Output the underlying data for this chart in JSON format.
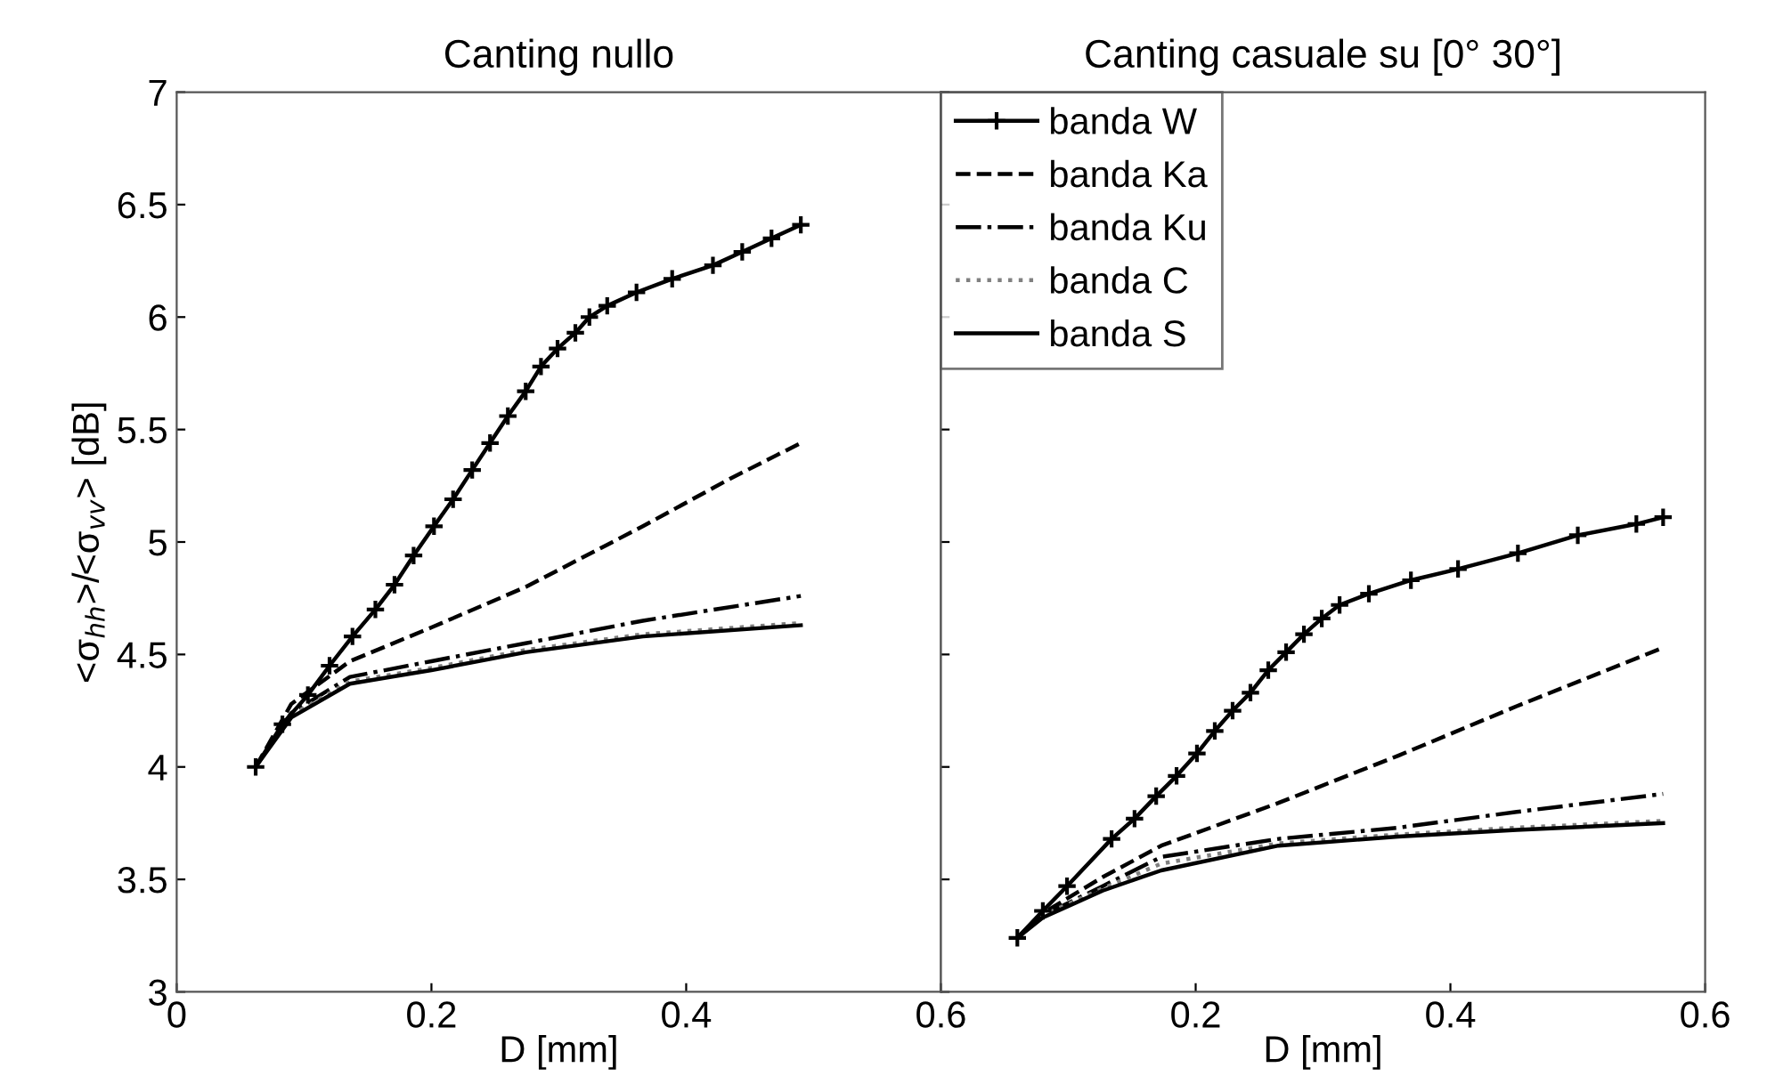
{
  "chart_data": [
    {
      "type": "line",
      "title": "Canting nullo",
      "xlabel": "D [mm]",
      "ylabel": "<σ$_{hh}$>/<σ$_{vv}$> [dB]",
      "xlim": [
        0,
        0.6
      ],
      "xticks": [
        0,
        0.2,
        0.4,
        0.6
      ],
      "ylim": [
        3,
        7
      ],
      "yticks": [
        3,
        3.5,
        4,
        4.5,
        5,
        5.5,
        6,
        6.5,
        7
      ],
      "grid": false,
      "legend": false,
      "series": [
        {
          "color": "#000000",
          "marker": "cross",
          "line_style": "solid",
          "x": [
            0.062,
            0.083,
            0.103,
            0.12,
            0.138,
            0.156,
            0.171,
            0.186,
            0.202,
            0.217,
            0.232,
            0.246,
            0.26,
            0.274,
            0.286,
            0.299,
            0.313,
            0.324,
            0.338,
            0.361,
            0.389,
            0.421,
            0.444,
            0.467,
            0.49
          ],
          "values": [
            4.0,
            4.19,
            4.32,
            4.45,
            4.58,
            4.7,
            4.81,
            4.94,
            5.07,
            5.19,
            5.32,
            5.44,
            5.56,
            5.67,
            5.78,
            5.86,
            5.93,
            6.0,
            6.05,
            6.11,
            6.17,
            6.23,
            6.29,
            6.35,
            6.41
          ]
        },
        {
          "color": "#000000",
          "marker": "none",
          "line_style": "dashed",
          "x": [
            0.062,
            0.09,
            0.136,
            0.2,
            0.274,
            0.366,
            0.434,
            0.49
          ],
          "values": [
            4.0,
            4.28,
            4.47,
            4.62,
            4.8,
            5.07,
            5.28,
            5.44
          ]
        },
        {
          "color": "#000000",
          "marker": "none",
          "line_style": "dashdot",
          "x": [
            0.062,
            0.09,
            0.136,
            0.2,
            0.274,
            0.366,
            0.49
          ],
          "values": [
            4.0,
            4.24,
            4.4,
            4.47,
            4.55,
            4.65,
            4.76
          ]
        },
        {
          "color": "#808080",
          "marker": "none",
          "line_style": "dotted",
          "x": [
            0.062,
            0.09,
            0.136,
            0.2,
            0.274,
            0.366,
            0.49
          ],
          "values": [
            4.0,
            4.23,
            4.38,
            4.44,
            4.52,
            4.59,
            4.64
          ]
        },
        {
          "color": "#000000",
          "marker": "none",
          "line_style": "solid",
          "x": [
            0.062,
            0.09,
            0.136,
            0.2,
            0.274,
            0.366,
            0.49
          ],
          "values": [
            4.0,
            4.22,
            4.37,
            4.43,
            4.51,
            4.58,
            4.63
          ]
        }
      ]
    },
    {
      "type": "line",
      "title": "Canting casuale su [0° 30°]",
      "xlabel": "D [mm]",
      "xlim": [
        0,
        0.6
      ],
      "xticks": [
        {
          "value": 0,
          "label": null
        },
        0.2,
        0.4,
        0.6
      ],
      "ylim": [
        3,
        7
      ],
      "yticks": [
        3,
        3.5,
        4,
        4.5,
        5,
        5.5,
        6,
        6.5,
        7
      ],
      "tick_labels": "x",
      "grid": false,
      "legend": "top left",
      "series": [
        {
          "name": "banda W",
          "color": "#000000",
          "marker": "cross",
          "line_style": "solid",
          "x": [
            0.06,
            0.08,
            0.099,
            0.134,
            0.152,
            0.169,
            0.185,
            0.201,
            0.215,
            0.229,
            0.243,
            0.257,
            0.271,
            0.285,
            0.299,
            0.313,
            0.336,
            0.369,
            0.406,
            0.453,
            0.5,
            0.546,
            0.567
          ],
          "values": [
            3.24,
            3.36,
            3.47,
            3.68,
            3.77,
            3.87,
            3.96,
            4.06,
            4.16,
            4.25,
            4.33,
            4.43,
            4.51,
            4.59,
            4.66,
            4.72,
            4.77,
            4.83,
            4.88,
            4.95,
            5.03,
            5.08,
            5.11
          ]
        },
        {
          "name": "banda Ka",
          "color": "#000000",
          "marker": "none",
          "line_style": "dashed",
          "x": [
            0.06,
            0.08,
            0.127,
            0.173,
            0.265,
            0.359,
            0.452,
            0.567
          ],
          "values": [
            3.24,
            3.35,
            3.51,
            3.65,
            3.84,
            4.05,
            4.27,
            4.53
          ]
        },
        {
          "name": "banda Ku",
          "color": "#000000",
          "marker": "none",
          "line_style": "dashdot",
          "x": [
            0.06,
            0.08,
            0.127,
            0.173,
            0.265,
            0.359,
            0.452,
            0.567
          ],
          "values": [
            3.24,
            3.34,
            3.47,
            3.6,
            3.68,
            3.73,
            3.8,
            3.88
          ]
        },
        {
          "name": "banda C",
          "color": "#808080",
          "marker": "none",
          "line_style": "dotted",
          "x": [
            0.06,
            0.08,
            0.127,
            0.173,
            0.265,
            0.359,
            0.452,
            0.567
          ],
          "values": [
            3.24,
            3.34,
            3.46,
            3.57,
            3.66,
            3.7,
            3.73,
            3.76
          ]
        },
        {
          "name": "banda S",
          "color": "#000000",
          "marker": "none",
          "line_style": "solid",
          "x": [
            0.06,
            0.08,
            0.127,
            0.173,
            0.265,
            0.359,
            0.452,
            0.567
          ],
          "values": [
            3.24,
            3.33,
            3.45,
            3.54,
            3.65,
            3.69,
            3.72,
            3.75
          ]
        }
      ]
    }
  ]
}
